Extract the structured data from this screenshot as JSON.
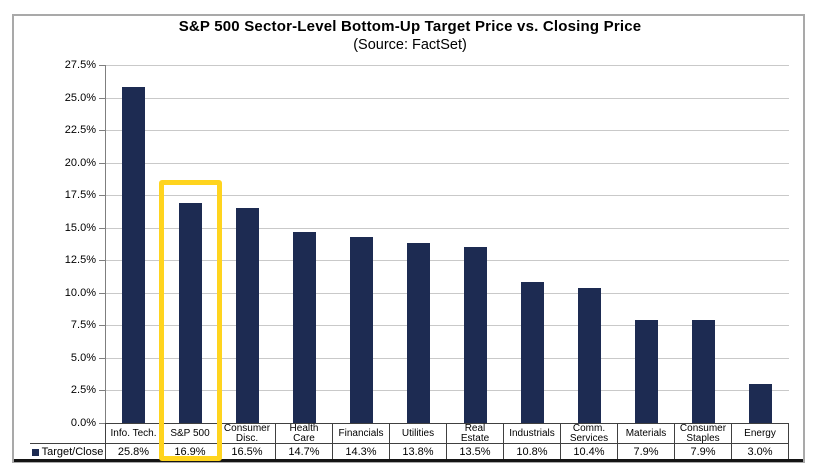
{
  "header": {
    "title": "S&P 500 Sector-Level Bottom-Up Target Price vs. Closing Price",
    "subtitle": "(Source: FactSet)"
  },
  "legend": {
    "label": "Target/Close"
  },
  "colors": {
    "bar": "#1d2b52",
    "highlight": "#ffd41e",
    "gridline": "#c9c9c9",
    "axis": "#7f7f7f",
    "table_border": "#404040"
  },
  "chart_data": {
    "type": "bar",
    "title": "S&P 500 Sector-Level Bottom-Up Target Price vs. Closing Price",
    "subtitle": "(Source: FactSet)",
    "series_name": "Target/Close",
    "categories": [
      "Info. Tech.",
      "S&P 500",
      "Consumer Disc.",
      "Health Care",
      "Financials",
      "Utilities",
      "Real Estate",
      "Industrials",
      "Comm. Services",
      "Materials",
      "Consumer Staples",
      "Energy"
    ],
    "values": [
      25.8,
      16.9,
      16.5,
      14.7,
      14.3,
      13.8,
      13.5,
      10.8,
      10.4,
      7.9,
      7.9,
      3.0
    ],
    "value_labels": [
      "25.8%",
      "16.9%",
      "16.5%",
      "14.7%",
      "14.3%",
      "13.8%",
      "13.5%",
      "10.8%",
      "10.4%",
      "7.9%",
      "7.9%",
      "3.0%"
    ],
    "ylim": [
      0,
      27.5
    ],
    "ytick_step": 2.5,
    "ytick_labels": [
      "27.5%",
      "25.0%",
      "22.5%",
      "20.0%",
      "17.5%",
      "15.0%",
      "12.5%",
      "10.0%",
      "7.5%",
      "5.0%",
      "2.5%",
      "0.0%"
    ],
    "grid": true,
    "legend_position": "bottom-left",
    "highlighted_category": "S&P 500"
  }
}
